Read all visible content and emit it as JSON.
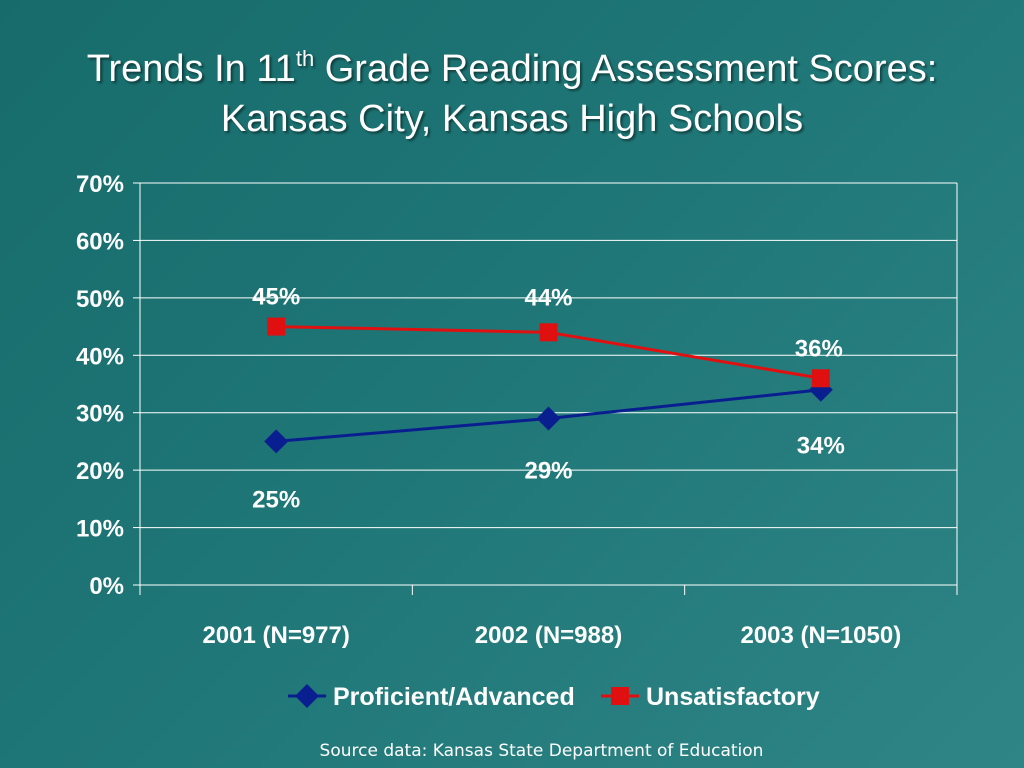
{
  "slide": {
    "title_line1_before": "Trends In 11",
    "title_sup": "th",
    "title_line1_after": " Grade Reading Assessment Scores:",
    "title_line2": "Kansas City, Kansas High Schools",
    "source": "Source data: Kansas State Department of Education"
  },
  "chart_data": {
    "type": "line",
    "categories": [
      "2001 (N=977)",
      "2002 (N=988)",
      "2003 (N=1050)"
    ],
    "series": [
      {
        "name": "Proficient/Advanced",
        "values": [
          25,
          29,
          34
        ],
        "labels": [
          "25%",
          "29%",
          "34%"
        ],
        "color": "#0a1f8f",
        "marker": "diamond"
      },
      {
        "name": "Unsatisfactory",
        "values": [
          45,
          44,
          36
        ],
        "labels": [
          "45%",
          "44%",
          "36%"
        ],
        "color": "#e01010",
        "marker": "square"
      }
    ],
    "ylim": [
      0,
      70
    ],
    "yticks": [
      0,
      10,
      20,
      30,
      40,
      50,
      60,
      70
    ],
    "ytick_labels": [
      "0%",
      "10%",
      "20%",
      "30%",
      "40%",
      "50%",
      "60%",
      "70%"
    ],
    "grid": true,
    "legend": "bottom",
    "colors": {
      "grid": "#ffffff",
      "axis": "#ffffff",
      "text": "#ffffff"
    }
  }
}
